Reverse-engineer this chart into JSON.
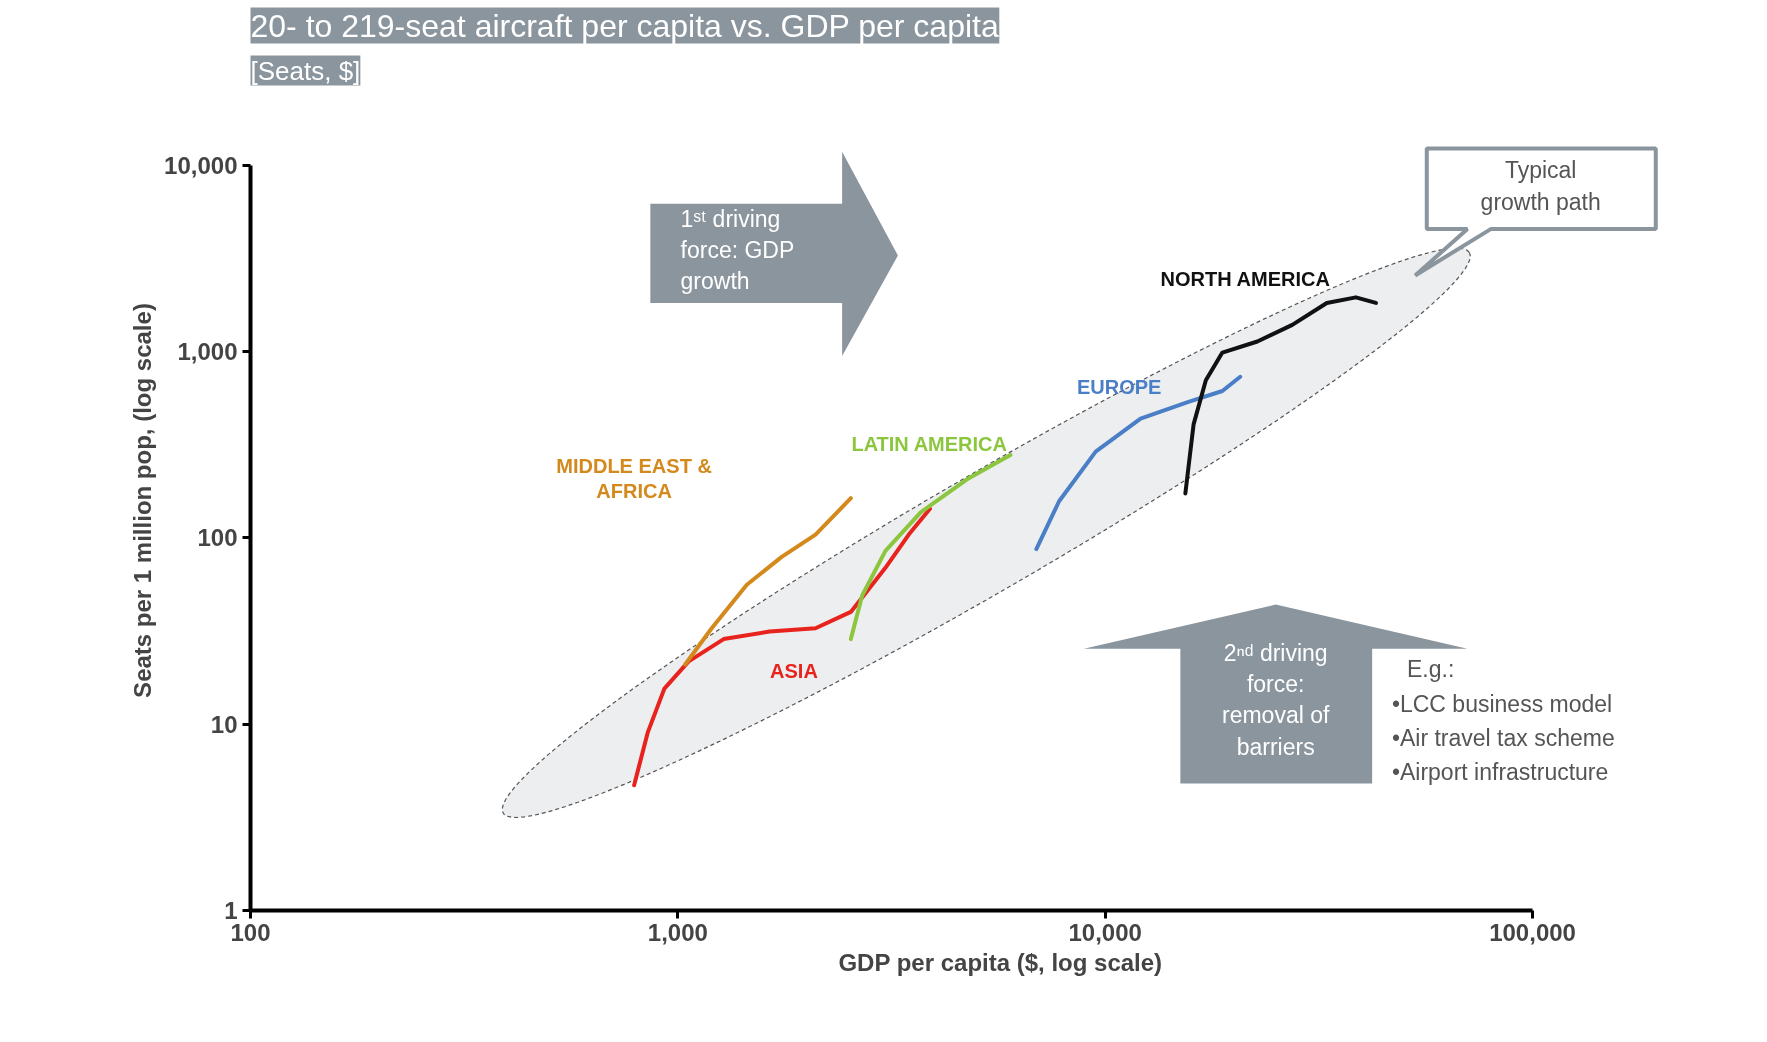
{
  "chart_data": {
    "type": "line",
    "title": "20- to 219-seat aircraft per capita vs. GDP per capita",
    "subtitle": "[Seats, $]",
    "xlabel": "GDP per capita ($, log scale)",
    "ylabel": "Seats per 1 million pop, (log scale)",
    "log": "xy",
    "grid": false,
    "marker": "none",
    "line_style": "solid",
    "xlim": [
      100,
      100000
    ],
    "ylim": [
      1,
      10000
    ],
    "xticks": [
      100,
      {
        "value": 1000,
        "label": "1,000"
      },
      {
        "value": 10000,
        "label": "10,000"
      },
      {
        "value": 100000,
        "label": "100,000"
      }
    ],
    "yticks": [
      1,
      10,
      100,
      {
        "value": 1000,
        "label": "1,000"
      },
      {
        "value": 10000,
        "label": "10,000"
      }
    ],
    "annotations": [
      "1ˢᵗ driving force: GDP growth",
      "Typical growth path",
      "2ⁿᵈ driving force: removal of barriers",
      "E.g.:",
      "•LCC business model",
      "•Air travel tax scheme",
      "•Airport infrastructure"
    ],
    "series": [
      {
        "name": "ASIA",
        "color": "#e8221d",
        "x": [
          790,
          850,
          930,
          1060,
          1280,
          1640,
          2100,
          2540,
          3060,
          3470,
          3890
        ],
        "values": [
          4.7,
          9.0,
          15.5,
          21.7,
          28.6,
          31.4,
          32.7,
          40,
          69,
          104,
          143
        ]
      },
      {
        "name": "MIDDLE EAST & AFRICA",
        "color": "#d4891c",
        "x": [
          1040,
          1200,
          1450,
          1750,
          2100,
          2540
        ],
        "values": [
          20.9,
          32.7,
          56,
          79,
          104,
          163
        ]
      },
      {
        "name": "LATIN AMERICA",
        "color": "#8cc63f",
        "x": [
          2540,
          2700,
          3060,
          3700,
          4750,
          6000
        ],
        "values": [
          28.6,
          49,
          85,
          137,
          206,
          278
        ]
      },
      {
        "name": "EUROPE",
        "color": "#4a7fc8",
        "x": [
          6900,
          7800,
          9500,
          12100,
          15600,
          18800,
          20700
        ],
        "values": [
          87,
          157,
          290,
          436,
          535,
          613,
          731
        ]
      },
      {
        "name": "NORTH AMERICA",
        "color": "#111111",
        "x": [
          15400,
          16100,
          17200,
          18800,
          22700,
          27400,
          33000,
          38600,
          43000
        ],
        "values": [
          173,
          406,
          701,
          986,
          1130,
          1387,
          1820,
          1950,
          1820
        ]
      }
    ]
  }
}
